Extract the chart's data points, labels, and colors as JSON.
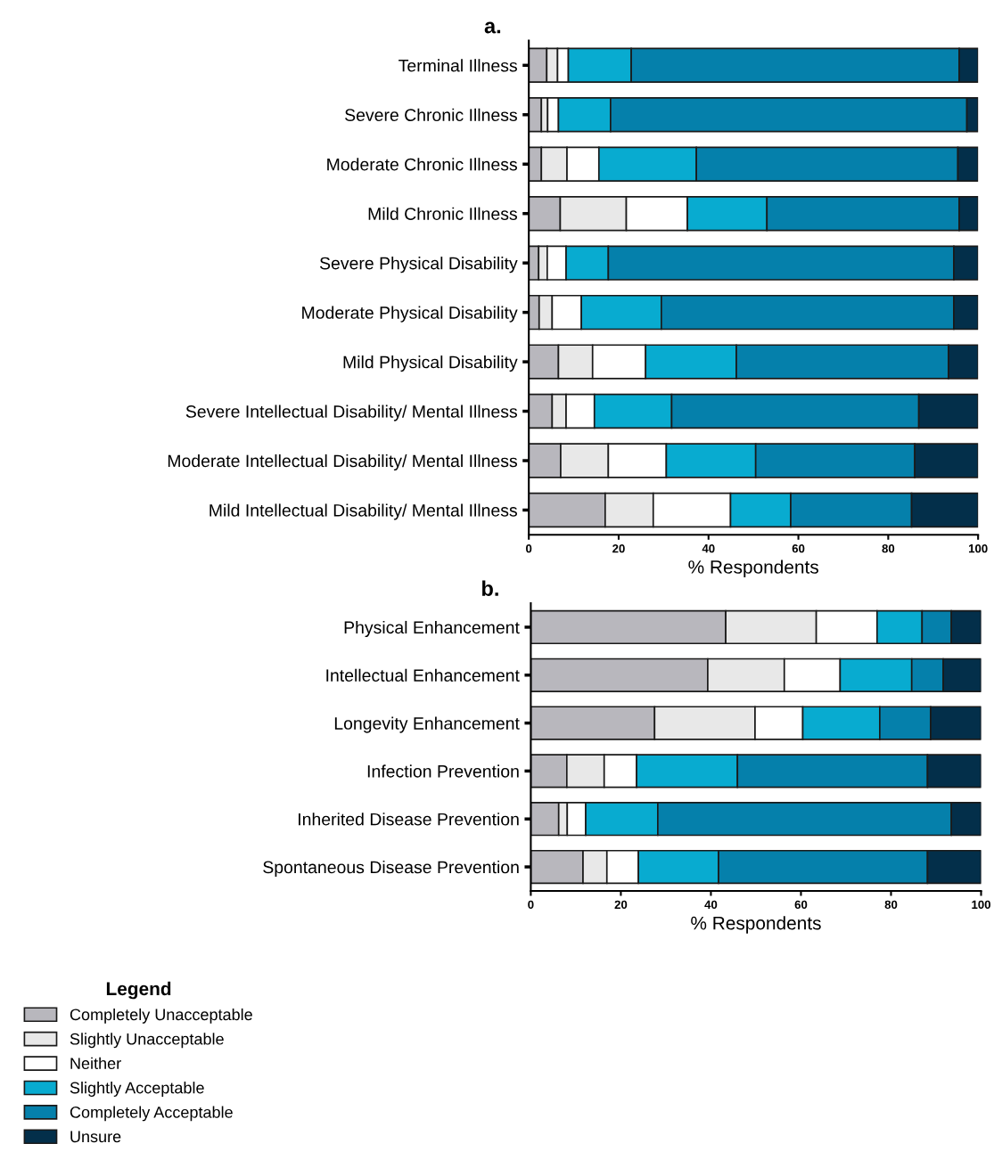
{
  "chart_data": [
    {
      "type": "bar",
      "title": "a.",
      "orientation": "horizontal",
      "stacked": true,
      "xlabel": "% Respondents",
      "xlim": [
        0,
        100
      ],
      "xticks": [
        0,
        20,
        40,
        60,
        80,
        100
      ],
      "grid": false,
      "legend": false,
      "categories": [
        "Terminal Illness",
        "Severe Chronic Illness",
        "Moderate Chronic Illness",
        "Mild Chronic Illness",
        "Severe Physical Disability",
        "Moderate Physical Disability",
        "Mild Physical Disability",
        "Severe Intellectual Disability/ Mental Illness",
        "Moderate Intellectual Disability/ Mental Illness",
        "Mild Intellectual Disability/ Mental Illness"
      ],
      "series": [
        {
          "color": "#b8b7bd",
          "values": [
            4.0,
            2.8,
            2.8,
            7.0,
            2.2,
            2.3,
            6.6,
            5.2,
            7.1,
            17.0
          ]
        },
        {
          "color": "#e8e8e8",
          "values": [
            2.4,
            1.4,
            5.7,
            14.7,
            1.9,
            2.9,
            7.6,
            3.1,
            10.6,
            10.7
          ]
        },
        {
          "color": "#ffffff",
          "values": [
            2.4,
            2.4,
            7.1,
            13.6,
            4.2,
            6.5,
            11.8,
            6.3,
            12.9,
            17.2
          ]
        },
        {
          "color": "#08abd0",
          "values": [
            14.0,
            11.6,
            21.7,
            17.7,
            9.4,
            17.8,
            20.2,
            17.2,
            19.9,
            13.4
          ]
        },
        {
          "color": "#0580ab",
          "values": [
            73.0,
            79.3,
            58.2,
            42.8,
            76.9,
            65.1,
            47.2,
            55.0,
            35.4,
            26.9
          ]
        },
        {
          "color": "#032f4a",
          "values": [
            4.2,
            2.5,
            4.5,
            4.2,
            5.4,
            5.4,
            6.6,
            13.2,
            14.1,
            14.8
          ]
        }
      ]
    },
    {
      "type": "bar",
      "title": "b.",
      "orientation": "horizontal",
      "stacked": true,
      "xlabel": "% Respondents",
      "xlim": [
        0,
        100
      ],
      "xticks": [
        0,
        20,
        40,
        60,
        80,
        100
      ],
      "grid": false,
      "legend": "bottom left",
      "legend_title": "Legend",
      "categories": [
        "Physical Enhancement",
        "Intellectual Enhancement",
        "Longevity Enhancement",
        "Infection Prevention",
        "Inherited Disease Prevention",
        "Spontaneous Disease Prevention"
      ],
      "series": [
        {
          "name": "Completely Unacceptable",
          "color": "#b8b7bd",
          "values": [
            43.3,
            39.3,
            27.5,
            8.0,
            6.2,
            11.6
          ]
        },
        {
          "name": "Slightly Unacceptable",
          "color": "#e8e8e8",
          "values": [
            20.1,
            17.0,
            22.3,
            8.3,
            1.9,
            5.3
          ]
        },
        {
          "name": "Neither",
          "color": "#ffffff",
          "values": [
            13.5,
            12.4,
            10.6,
            7.2,
            4.1,
            7.0
          ]
        },
        {
          "name": "Slightly Acceptable",
          "color": "#08abd0",
          "values": [
            10.0,
            15.9,
            17.1,
            22.4,
            16.0,
            17.8
          ]
        },
        {
          "name": "Completely Acceptable",
          "color": "#0580ab",
          "values": [
            6.5,
            7.0,
            11.3,
            42.2,
            65.2,
            46.4
          ]
        },
        {
          "name": "Unsure",
          "color": "#032f4a",
          "values": [
            6.6,
            8.4,
            11.2,
            11.9,
            6.6,
            11.9
          ]
        }
      ]
    }
  ]
}
